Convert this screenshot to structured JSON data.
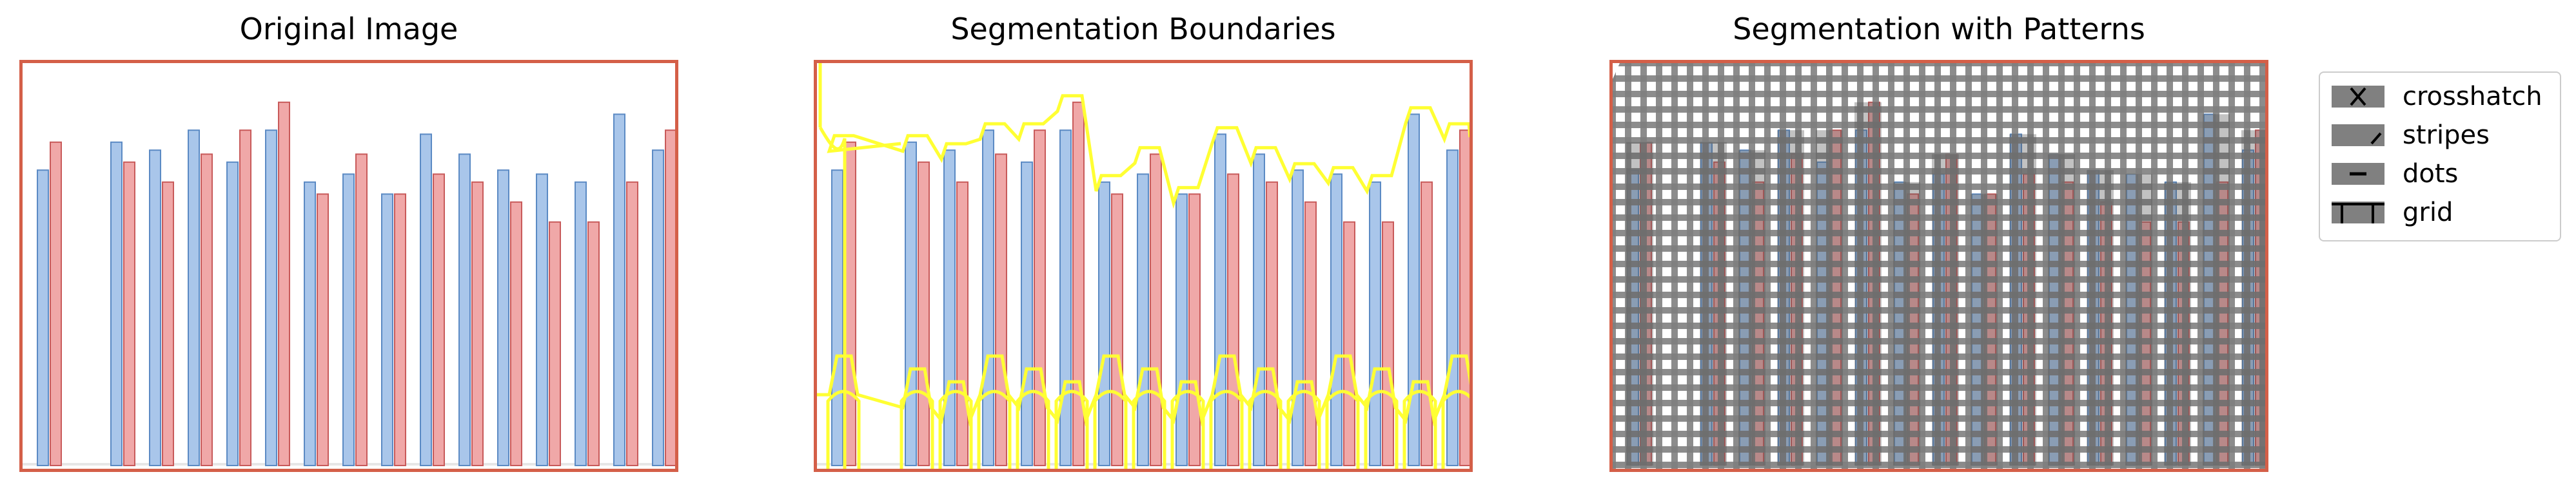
{
  "panels": [
    {
      "title": "Original Image",
      "variant": "original"
    },
    {
      "title": "Segmentation Boundaries",
      "variant": "boundaries"
    },
    {
      "title": "Segmentation with Patterns",
      "variant": "patterns"
    }
  ],
  "legend": {
    "items": [
      {
        "label": "crosshatch",
        "icon": "crosshatch-pattern-icon"
      },
      {
        "label": "stripes",
        "icon": "stripes-pattern-icon"
      },
      {
        "label": "dots",
        "icon": "dots-pattern-icon"
      },
      {
        "label": "grid",
        "icon": "grid-pattern-icon"
      }
    ]
  },
  "colors": {
    "frame": "#d45f48",
    "blue_bar": "#a9c6ea",
    "blue_edge": "#5b8ac4",
    "red_bar": "#f0a8a8",
    "red_edge": "#c85a5a",
    "boundary": "#ffff33",
    "pattern_gray": "#808080"
  },
  "bars": {
    "pairs": [
      {
        "blue": 0.74,
        "red": 0.81
      },
      {
        "blue": 0.81,
        "red": 0.76
      },
      {
        "blue": 0.79,
        "red": 0.71
      },
      {
        "blue": 0.84,
        "red": 0.78
      },
      {
        "blue": 0.76,
        "red": 0.84
      },
      {
        "blue": 0.84,
        "red": 0.91
      },
      {
        "blue": 0.71,
        "red": 0.68
      },
      {
        "blue": 0.73,
        "red": 0.78
      },
      {
        "blue": 0.68,
        "red": 0.68
      },
      {
        "blue": 0.83,
        "red": 0.73
      },
      {
        "blue": 0.78,
        "red": 0.71
      },
      {
        "blue": 0.74,
        "red": 0.66
      },
      {
        "blue": 0.73,
        "red": 0.61
      },
      {
        "blue": 0.71,
        "red": 0.61
      },
      {
        "blue": 0.88,
        "red": 0.71
      },
      {
        "blue": 0.79,
        "red": 0.84
      }
    ]
  }
}
